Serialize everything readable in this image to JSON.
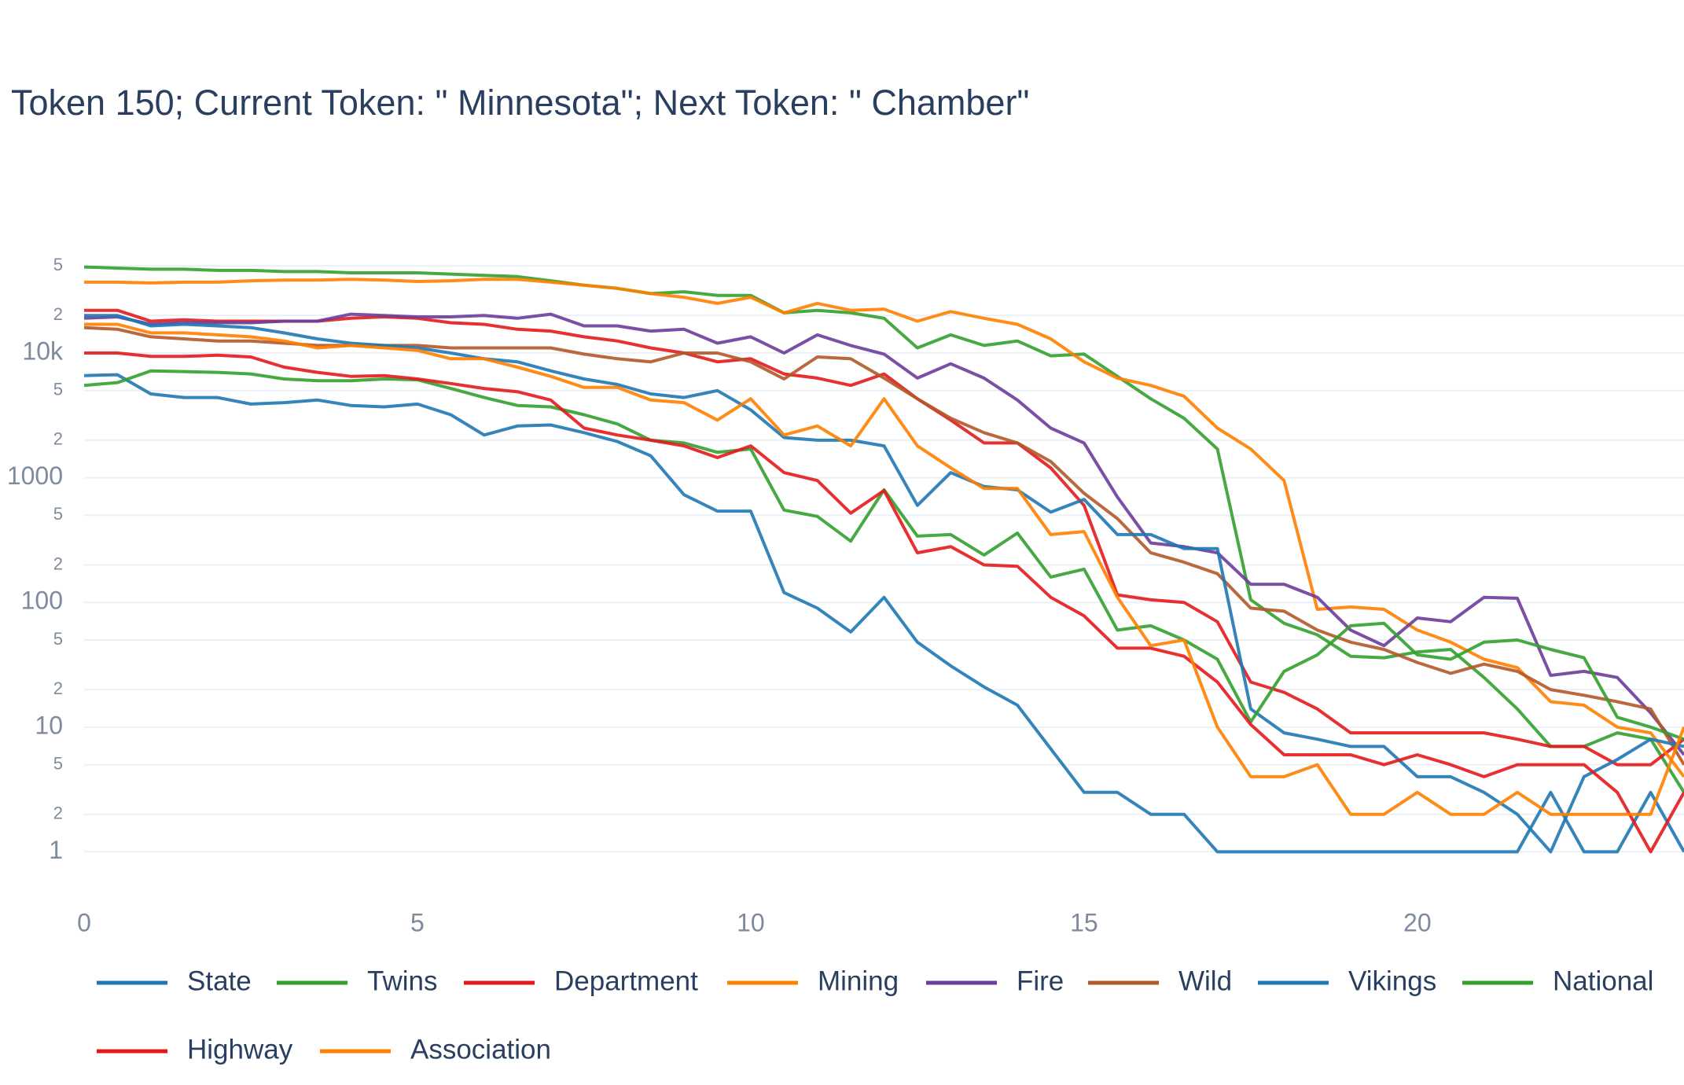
{
  "chart_data": {
    "type": "line",
    "title": "Token 150; Current Token: \" Minnesota\"; Next Token: \" Chamber\"",
    "log_y": true,
    "grid": true,
    "legend_position": "bottom",
    "xlim": [
      0,
      24
    ],
    "xticks": [
      0,
      5,
      10,
      15,
      20
    ],
    "ylim": [
      0.7,
      70000
    ],
    "yticks": [
      1,
      2,
      5,
      10,
      {
        "value": 20,
        "label": "2"
      },
      {
        "value": 50,
        "label": "5"
      },
      100,
      {
        "value": 200,
        "label": "2"
      },
      {
        "value": 500,
        "label": "5"
      },
      1000,
      {
        "value": 2000,
        "label": "2"
      },
      {
        "value": 5000,
        "label": "5"
      },
      {
        "value": 10000,
        "label": "10k"
      },
      {
        "value": 20000,
        "label": "2"
      },
      {
        "value": 50000,
        "label": "5"
      }
    ],
    "x": [
      0,
      0.5,
      1,
      1.5,
      2,
      2.5,
      3,
      3.5,
      4,
      4.5,
      5,
      5.5,
      6,
      6.5,
      7,
      7.5,
      8,
      8.5,
      9,
      9.5,
      10,
      10.5,
      11,
      11.5,
      12,
      12.5,
      13,
      13.5,
      14,
      14.5,
      15,
      15.5,
      16,
      16.5,
      17,
      17.5,
      18,
      18.5,
      19,
      19.5,
      20,
      20.5,
      21,
      21.5,
      22,
      22.5,
      23,
      23.5,
      24
    ],
    "series": [
      {
        "name": "State",
        "color": "#1f78b4",
        "values": [
          6600,
          6700,
          4700,
          4400,
          4400,
          3900,
          4000,
          4200,
          3800,
          3700,
          3900,
          3200,
          2200,
          2600,
          2650,
          2300,
          1950,
          1500,
          730,
          540,
          540,
          120,
          90,
          58,
          110,
          48,
          31,
          21,
          15,
          6.7,
          3,
          3,
          2,
          2,
          1,
          1,
          1,
          1,
          1,
          1,
          1,
          1,
          1,
          1,
          3,
          1,
          1,
          3,
          1
        ]
      },
      {
        "name": "Twins",
        "color": "#33a02c",
        "values": [
          49000,
          48000,
          47000,
          47000,
          46000,
          46000,
          45000,
          45000,
          44000,
          44000,
          44000,
          43000,
          42000,
          41000,
          38000,
          35000,
          33000,
          30000,
          31000,
          29000,
          29000,
          21000,
          22000,
          21000,
          19000,
          11000,
          14000,
          11500,
          12500,
          9500,
          9800,
          6500,
          4300,
          3000,
          1700,
          105,
          68,
          55,
          37,
          36,
          40,
          42,
          25,
          14,
          7,
          7,
          9,
          8,
          3
        ]
      },
      {
        "name": "Department",
        "color": "#e31a1c",
        "values": [
          22000,
          22000,
          18000,
          18500,
          18000,
          18000,
          18000,
          18000,
          19000,
          19500,
          19000,
          17500,
          17000,
          15500,
          15000,
          13500,
          12500,
          11000,
          10000,
          8500,
          9000,
          6800,
          6300,
          5500,
          6800,
          4300,
          2900,
          1900,
          1900,
          1200,
          600,
          115,
          105,
          100,
          70,
          23,
          19,
          14,
          9,
          9,
          9,
          9,
          9,
          8,
          7,
          7,
          5,
          5,
          8
        ]
      },
      {
        "name": "Mining",
        "color": "#ff7f00",
        "values": [
          37000,
          37000,
          36500,
          37000,
          37000,
          38000,
          38500,
          38500,
          39000,
          38500,
          37500,
          38000,
          39000,
          39000,
          37000,
          35000,
          33000,
          30000,
          28000,
          25000,
          28000,
          21000,
          25000,
          22000,
          22500,
          18000,
          21500,
          19000,
          17000,
          13000,
          8500,
          6300,
          5500,
          4500,
          2500,
          1700,
          950,
          88,
          92,
          88,
          60,
          48,
          35,
          30,
          16,
          15,
          10,
          9,
          4
        ]
      },
      {
        "name": "Fire",
        "color": "#6a3d9a",
        "values": [
          19000,
          19500,
          17000,
          17500,
          17500,
          17500,
          18000,
          18000,
          20500,
          20000,
          19500,
          19500,
          20000,
          19000,
          20500,
          16500,
          16500,
          15000,
          15500,
          12000,
          13500,
          10000,
          14000,
          11500,
          9800,
          6300,
          8200,
          6300,
          4200,
          2500,
          1900,
          700,
          300,
          280,
          250,
          140,
          140,
          110,
          60,
          45,
          75,
          70,
          110,
          108,
          26,
          28,
          25,
          13,
          6
        ]
      },
      {
        "name": "Wild",
        "color": "#b15928",
        "values": [
          16000,
          15500,
          13500,
          13000,
          12500,
          12500,
          12000,
          11500,
          11500,
          11500,
          11500,
          11000,
          11000,
          11000,
          11000,
          9800,
          9000,
          8500,
          10000,
          10000,
          8500,
          6200,
          9300,
          9000,
          6300,
          4300,
          3000,
          2300,
          1900,
          1350,
          750,
          470,
          250,
          210,
          170,
          90,
          85,
          60,
          48,
          42,
          33,
          27,
          32,
          28,
          20,
          18,
          16,
          14,
          5
        ]
      },
      {
        "name": "Vikings",
        "color": "#1f78b4",
        "values": [
          20000,
          20000,
          16500,
          17000,
          16500,
          16000,
          14500,
          13000,
          12000,
          11500,
          11000,
          10000,
          9000,
          8500,
          7200,
          6200,
          5600,
          4700,
          4400,
          5000,
          3500,
          2100,
          2000,
          2000,
          1800,
          600,
          1100,
          850,
          800,
          530,
          670,
          350,
          350,
          270,
          270,
          14,
          9,
          8,
          7,
          7,
          4,
          4,
          3,
          2,
          1,
          4,
          5.5,
          8,
          7
        ]
      },
      {
        "name": "National",
        "color": "#33a02c",
        "values": [
          5500,
          5800,
          7200,
          7100,
          7000,
          6800,
          6200,
          6000,
          6000,
          6200,
          6100,
          5200,
          4400,
          3800,
          3700,
          3200,
          2700,
          2000,
          1900,
          1600,
          1700,
          550,
          490,
          310,
          800,
          340,
          350,
          240,
          360,
          160,
          185,
          60,
          65,
          50,
          35,
          11,
          28,
          38,
          65,
          68,
          38,
          35,
          48,
          50,
          42,
          36,
          12,
          10,
          8
        ]
      },
      {
        "name": "Highway",
        "color": "#e31a1c",
        "values": [
          10000,
          10000,
          9400,
          9400,
          9600,
          9300,
          7700,
          7000,
          6500,
          6600,
          6200,
          5700,
          5200,
          4900,
          4200,
          2500,
          2200,
          2000,
          1800,
          1450,
          1800,
          1100,
          950,
          520,
          790,
          250,
          280,
          200,
          195,
          110,
          78,
          43,
          43,
          37,
          23,
          10.5,
          6,
          6,
          6,
          5,
          6,
          5,
          4,
          5,
          5,
          5,
          3,
          1,
          3
        ]
      },
      {
        "name": "Association",
        "color": "#ff7f00",
        "values": [
          17000,
          17000,
          14500,
          14500,
          14000,
          13500,
          12500,
          11000,
          11500,
          11000,
          10500,
          9000,
          9000,
          7700,
          6500,
          5300,
          5300,
          4200,
          4000,
          2900,
          4300,
          2200,
          2600,
          1800,
          4300,
          1800,
          1200,
          820,
          820,
          350,
          370,
          110,
          45,
          50,
          10,
          4,
          4,
          5,
          2,
          2,
          3,
          2,
          2,
          3,
          2,
          2,
          2,
          2,
          10
        ]
      }
    ]
  }
}
